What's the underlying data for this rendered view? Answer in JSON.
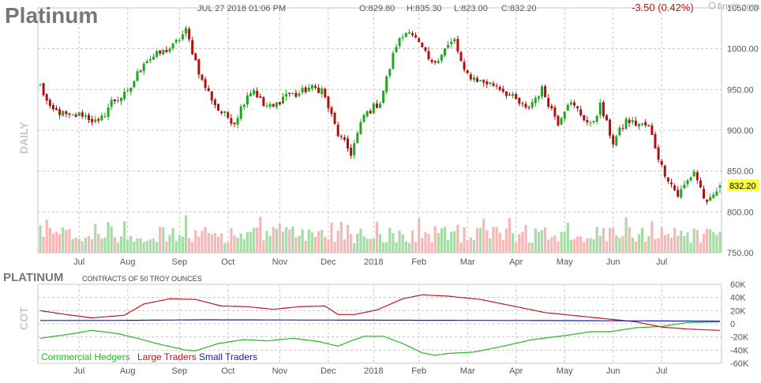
{
  "header": {
    "symbol": "Platinum",
    "datetime": "JUL 27 2018 01:06 PM",
    "open": "O:829.80",
    "high": "H:835.30",
    "low": "L:823.00",
    "close": "C:832.20",
    "change": "-3.50 (0.42%)",
    "watermark": "finviz.com",
    "last_price_tag": "832.20",
    "interval_label": "DAILY"
  },
  "cot": {
    "title": "PLATINUM",
    "subtitle": "CONTRACTS OF 50 TROY OUNCES",
    "side_label": "COT"
  },
  "colors": {
    "up": "#22a622",
    "down": "#b01010",
    "vol_up": "#a6dca6",
    "vol_down": "#f5b7b7",
    "grid": "#c8c8c8",
    "price_tag_bg": "#ffff33",
    "commercial": "#22bb22",
    "large": "#c0181c",
    "small": "#1a1ab0"
  },
  "chart_data": [
    {
      "type": "candlestick",
      "series_anchors": {
        "x": [
          0,
          3,
          6,
          9,
          13,
          18,
          22,
          27,
          32,
          36,
          41,
          45,
          50,
          55,
          60,
          64,
          66,
          69,
          72,
          76,
          79,
          83,
          87,
          92,
          96,
          100,
          105,
          110,
          114,
          117,
          121,
          125,
          128,
          131,
          136,
          141,
          146,
          150,
          155,
          160,
          163,
          166,
          170,
          173,
          177,
          181,
          184,
          188,
          192,
          197,
          202,
          206,
          210
        ],
        "close": [
          955,
          925,
          922,
          916,
          920,
          908,
          935,
          945,
          985,
          992,
          1003,
          1022,
          960,
          925,
          910,
          945,
          950,
          930,
          928,
          945,
          943,
          952,
          950,
          895,
          872,
          918,
          935,
          1005,
          1025,
          1005,
          980,
          1000,
          1010,
          970,
          960,
          955,
          940,
          925,
          950,
          910,
          935,
          925,
          905,
          930,
          885,
          912,
          908,
          905,
          855,
          820,
          850,
          808,
          832
        ]
      },
      "last": {
        "open": 829.8,
        "high": 835.3,
        "low": 823.0,
        "close": 832.2
      },
      "x_categories": [
        "Jul",
        "Aug",
        "Sep",
        "Oct",
        "Nov",
        "Dec",
        "2018",
        "Feb",
        "Mar",
        "Apr",
        "May",
        "Jun",
        "Jul"
      ],
      "y_ticks": [
        "1050.00",
        "1000.00",
        "950.00",
        "900.00",
        "850.00",
        "800.00",
        "750.00"
      ],
      "ylim": [
        750,
        1050
      ],
      "grid": true
    },
    {
      "type": "line",
      "x_categories": [
        "Jul",
        "Aug",
        "Sep",
        "Oct",
        "Nov",
        "Dec",
        "2018",
        "Feb",
        "Mar",
        "Apr",
        "May",
        "Jun",
        "Jul"
      ],
      "y_ticks": [
        "60K",
        "40K",
        "20K",
        "0",
        "-20K",
        "-40K",
        "-60K"
      ],
      "ylim": [
        -60000,
        60000
      ],
      "series": [
        {
          "name": "Commercial Hedgers",
          "anchors": [
            [
              0,
              -22000
            ],
            [
              10,
              -15000
            ],
            [
              16,
              -10000
            ],
            [
              24,
              -15000
            ],
            [
              30,
              -22000
            ],
            [
              36,
              -30000
            ],
            [
              45,
              -40000
            ],
            [
              48,
              -41000
            ],
            [
              55,
              -30000
            ],
            [
              63,
              -24000
            ],
            [
              70,
              -26000
            ],
            [
              78,
              -22000
            ],
            [
              86,
              -27000
            ],
            [
              92,
              -34000
            ],
            [
              96,
              -26000
            ],
            [
              100,
              -19000
            ],
            [
              106,
              -19000
            ],
            [
              112,
              -30000
            ],
            [
              118,
              -44000
            ],
            [
              122,
              -48000
            ],
            [
              126,
              -45000
            ],
            [
              134,
              -43000
            ],
            [
              144,
              -33000
            ],
            [
              152,
              -24000
            ],
            [
              162,
              -18000
            ],
            [
              170,
              -12000
            ],
            [
              176,
              -12000
            ],
            [
              184,
              -6000
            ],
            [
              192,
              -4000
            ],
            [
              200,
              2000
            ],
            [
              210,
              3000
            ]
          ]
        },
        {
          "name": "Large Traders",
          "anchors": [
            [
              0,
              20000
            ],
            [
              8,
              14000
            ],
            [
              16,
              9000
            ],
            [
              26,
              13000
            ],
            [
              32,
              30000
            ],
            [
              40,
              38000
            ],
            [
              48,
              37000
            ],
            [
              56,
              27000
            ],
            [
              64,
              26000
            ],
            [
              72,
              22000
            ],
            [
              80,
              26000
            ],
            [
              88,
              27000
            ],
            [
              92,
              14000
            ],
            [
              97,
              14000
            ],
            [
              104,
              21000
            ],
            [
              112,
              38000
            ],
            [
              118,
              44000
            ],
            [
              126,
              42000
            ],
            [
              136,
              37000
            ],
            [
              146,
              27000
            ],
            [
              156,
              17000
            ],
            [
              164,
              13000
            ],
            [
              170,
              10000
            ],
            [
              178,
              6000
            ],
            [
              184,
              3000
            ],
            [
              192,
              -5000
            ],
            [
              200,
              -8000
            ],
            [
              210,
              -10000
            ]
          ]
        },
        {
          "name": "Small Traders",
          "anchors": [
            [
              0,
              5000
            ],
            [
              20,
              5000
            ],
            [
              50,
              6000
            ],
            [
              100,
              5500
            ],
            [
              150,
              5000
            ],
            [
              180,
              4500
            ],
            [
              210,
              4000
            ]
          ]
        }
      ],
      "legend": "bottom-left",
      "grid": true
    }
  ]
}
